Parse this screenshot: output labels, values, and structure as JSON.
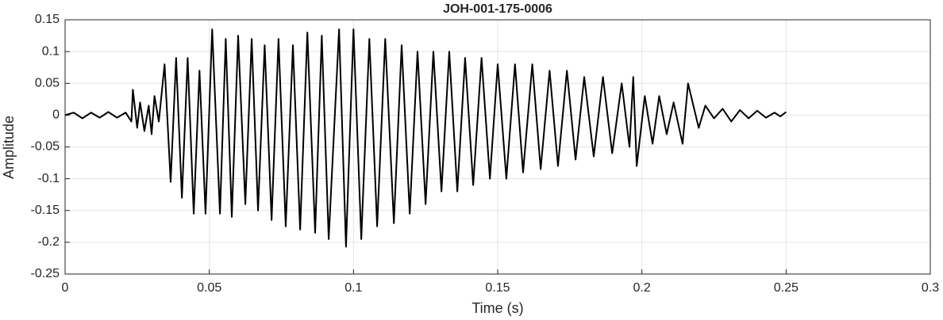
{
  "chart_data": {
    "type": "line",
    "title": "JOH-001-175-0006",
    "x_label": "Time (s)",
    "y_label": "Amplitude",
    "xlim": [
      0,
      0.3
    ],
    "xticks": [
      0,
      0.05,
      0.1,
      0.15,
      0.2,
      0.25,
      0.3
    ],
    "ylim": [
      -0.25,
      0.15
    ],
    "yticks": [
      -0.25,
      -0.2,
      -0.15,
      -0.1,
      -0.05,
      0,
      0.05,
      0.1,
      0.15
    ],
    "grid": true,
    "x": [
      0,
      0.003,
      0.006,
      0.009,
      0.012,
      0.015,
      0.018,
      0.021,
      0.023,
      0.0235,
      0.025,
      0.026,
      0.0275,
      0.029,
      0.03,
      0.031,
      0.0325,
      0.0345,
      0.0366,
      0.0385,
      0.0405,
      0.0425,
      0.0446,
      0.0466,
      0.0487,
      0.051,
      0.0537,
      0.0557,
      0.0578,
      0.06,
      0.0625,
      0.0647,
      0.0669,
      0.0692,
      0.0716,
      0.074,
      0.0765,
      0.079,
      0.0815,
      0.084,
      0.0867,
      0.089,
      0.0914,
      0.095,
      0.0974,
      0.1,
      0.1027,
      0.1055,
      0.1082,
      0.111,
      0.114,
      0.1167,
      0.1195,
      0.1222,
      0.125,
      0.1277,
      0.1305,
      0.1332,
      0.136,
      0.1387,
      0.1415,
      0.1444,
      0.1473,
      0.15,
      0.153,
      0.156,
      0.1588,
      0.162,
      0.1649,
      0.168,
      0.1709,
      0.174,
      0.177,
      0.18,
      0.1833,
      0.1865,
      0.1897,
      0.193,
      0.1957,
      0.197,
      0.1982,
      0.201,
      0.2037,
      0.206,
      0.2086,
      0.211,
      0.2141,
      0.216,
      0.2197,
      0.222,
      0.225,
      0.228,
      0.231,
      0.234,
      0.237,
      0.24,
      0.243,
      0.246,
      0.248,
      0.25
    ],
    "series": [
      {
        "name": "Amplitude",
        "color": "#000000",
        "values": [
          0,
          0.004,
          -0.005,
          0.004,
          -0.004,
          0.005,
          -0.004,
          0.004,
          -0.01,
          0.04,
          -0.02,
          0.02,
          -0.025,
          0.015,
          -0.03,
          0.03,
          -0.01,
          0.08,
          -0.105,
          0.09,
          -0.13,
          0.09,
          -0.155,
          0.07,
          -0.155,
          0.135,
          -0.155,
          0.12,
          -0.16,
          0.125,
          -0.14,
          0.12,
          -0.15,
          0.11,
          -0.165,
          0.12,
          -0.175,
          0.11,
          -0.18,
          0.13,
          -0.185,
          0.125,
          -0.195,
          0.135,
          -0.207,
          0.135,
          -0.195,
          0.12,
          -0.175,
          0.12,
          -0.17,
          0.11,
          -0.155,
          0.1,
          -0.14,
          0.1,
          -0.12,
          0.1,
          -0.12,
          0.09,
          -0.11,
          0.09,
          -0.1,
          0.08,
          -0.1,
          0.08,
          -0.09,
          0.08,
          -0.085,
          0.07,
          -0.08,
          0.07,
          -0.07,
          0.06,
          -0.065,
          0.06,
          -0.06,
          0.05,
          -0.05,
          0.06,
          -0.08,
          0.03,
          -0.045,
          0.03,
          -0.03,
          0.02,
          -0.045,
          0.05,
          -0.02,
          0.015,
          -0.005,
          0.01,
          -0.01,
          0.008,
          -0.005,
          0.007,
          -0.004,
          0.004,
          -0.002,
          0.005
        ]
      }
    ]
  }
}
